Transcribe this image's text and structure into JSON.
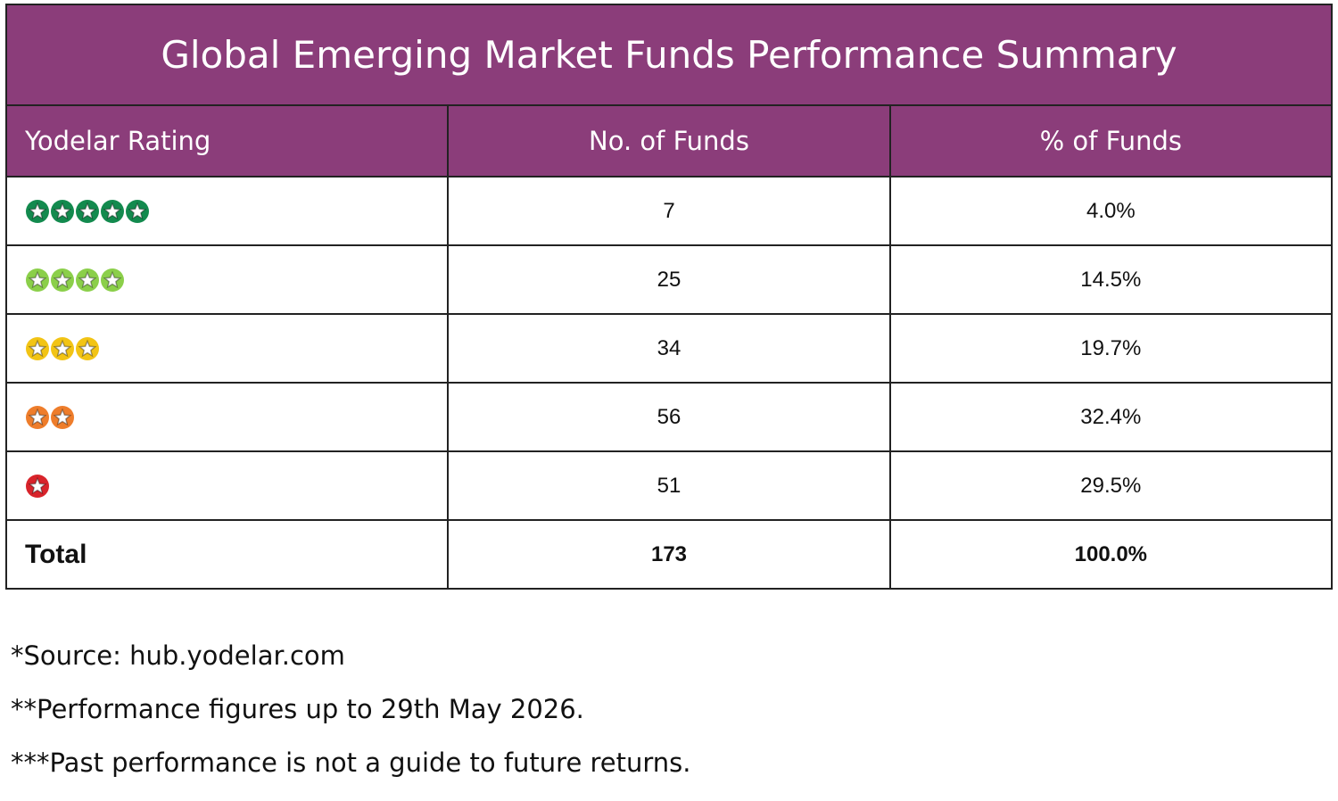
{
  "title": "Global Emerging Market Funds Performance Summary",
  "table": {
    "headers": [
      "Yodelar Rating",
      "No. of Funds",
      "% of Funds"
    ],
    "rows": [
      {
        "stars": 5,
        "color": "#138a4e",
        "funds": "7",
        "percent": "4.0%"
      },
      {
        "stars": 4,
        "color": "#8bcf4a",
        "funds": "25",
        "percent": "14.5%"
      },
      {
        "stars": 3,
        "color": "#f2c415",
        "funds": "34",
        "percent": "19.7%"
      },
      {
        "stars": 2,
        "color": "#ee7d2b",
        "funds": "56",
        "percent": "32.4%"
      },
      {
        "stars": 1,
        "color": "#d8242b",
        "funds": "51",
        "percent": "29.5%"
      }
    ],
    "total": [
      "Total",
      "173",
      "100.0%"
    ]
  },
  "footnotes": [
    "*Source: hub.yodelar.com",
    "**Performance figures up to 29th May 2026.",
    "***Past performance is not a guide to future returns."
  ]
}
